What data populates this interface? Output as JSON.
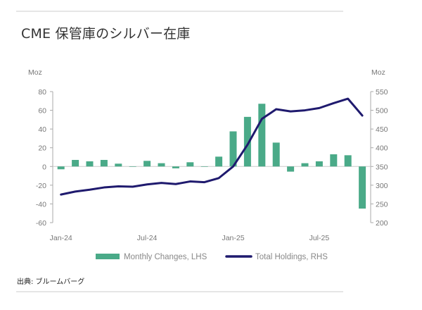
{
  "title": "CME 保管庫のシルバー在庫",
  "source": "出典: ブルームバーグ",
  "chart_data": {
    "type": "bar+line",
    "title": "CME 保管庫のシルバー在庫",
    "categories": [
      "Jan-24",
      "Feb-24",
      "Mar-24",
      "Apr-24",
      "May-24",
      "Jun-24",
      "Jul-24",
      "Aug-24",
      "Sep-24",
      "Oct-24",
      "Nov-24",
      "Dec-24",
      "Jan-25",
      "Feb-25",
      "Mar-25",
      "Apr-25",
      "May-25",
      "Jun-25",
      "Jul-25",
      "Aug-25",
      "Sep-25",
      "Oct-25"
    ],
    "x_tick_labels": [
      "Jan-24",
      "Jul-24",
      "Jan-25",
      "Jul-25"
    ],
    "left_axis": {
      "label": "Moz",
      "ylim": [
        -60,
        80
      ],
      "ticks": [
        80,
        60,
        40,
        20,
        0,
        -20,
        -40,
        -60
      ]
    },
    "right_axis": {
      "label": "Moz",
      "ylim": [
        200,
        550
      ],
      "ticks": [
        550,
        500,
        450,
        400,
        350,
        300,
        250,
        200
      ]
    },
    "series": [
      {
        "name": "Monthly Changes, LHS",
        "type": "bar",
        "axis": "left",
        "color": "#4aaa88",
        "values": [
          -3,
          7,
          5.5,
          7,
          3,
          0,
          6,
          3.5,
          -2,
          4.5,
          0,
          10.5,
          37.5,
          53,
          67,
          25.5,
          -5.5,
          3.5,
          5.5,
          13,
          12,
          -45
        ]
      },
      {
        "name": "Total Holdings, RHS",
        "type": "line",
        "axis": "right",
        "color": "#1f1a6e",
        "values": [
          275,
          283,
          288,
          294,
          297,
          296,
          302,
          306,
          303,
          310,
          308,
          319,
          350,
          408,
          477,
          503,
          497,
          500,
          506,
          519,
          531,
          486
        ]
      }
    ],
    "legend": "bottom",
    "grid": false
  }
}
